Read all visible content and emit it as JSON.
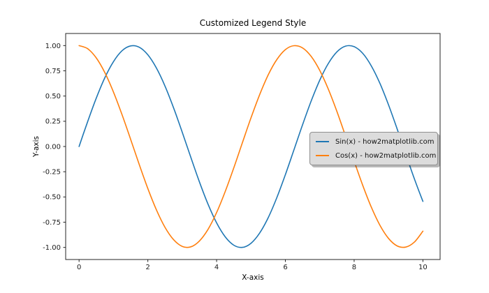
{
  "figure": {
    "title": "Customized Legend Style",
    "xlabel": "X-axis",
    "ylabel": "Y-axis"
  },
  "legend": {
    "facecolor": "#dcdcdc",
    "edgecolor": "#8f8f8f",
    "shadow": true,
    "entries": [
      {
        "label": "Sin(x) - how2matplotlib.com",
        "color": "#1f77b4"
      },
      {
        "label": "Cos(x) - how2matplotlib.com",
        "color": "#ff7f0e"
      }
    ]
  },
  "chart_data": {
    "type": "line",
    "title": "Customized Legend Style",
    "xlabel": "X-axis",
    "ylabel": "Y-axis",
    "grid": false,
    "legend_position": "center-right",
    "xlim": [
      -0.39,
      10.5
    ],
    "ylim": [
      -1.12,
      1.12
    ],
    "xticks": [
      0,
      2,
      4,
      6,
      8,
      10
    ],
    "xtick_labels": [
      "0",
      "2",
      "4",
      "6",
      "8",
      "10"
    ],
    "yticks": [
      1.0,
      0.75,
      0.5,
      0.25,
      0.0,
      -0.25,
      -0.5,
      -0.75,
      -1.0
    ],
    "ytick_labels": [
      "1.00",
      "0.75",
      "0.50",
      "0.25",
      "0.00",
      "-0.25",
      "-0.50",
      "-0.75",
      "-1.00"
    ],
    "x": [
      0,
      0.25,
      0.5,
      0.75,
      1,
      1.25,
      1.5,
      1.75,
      2,
      2.25,
      2.5,
      2.75,
      3,
      3.25,
      3.5,
      3.75,
      4,
      4.25,
      4.5,
      4.75,
      5,
      5.25,
      5.5,
      5.75,
      6,
      6.25,
      6.5,
      6.75,
      7,
      7.25,
      7.5,
      7.75,
      8,
      8.25,
      8.5,
      8.75,
      9,
      9.25,
      9.5,
      9.75,
      10
    ],
    "series": [
      {
        "name": "Sin(x) - how2matplotlib.com",
        "color": "#1f77b4",
        "values": [
          0,
          0.247,
          0.479,
          0.682,
          0.841,
          0.949,
          0.997,
          0.984,
          0.909,
          0.778,
          0.599,
          0.382,
          0.141,
          -0.108,
          -0.351,
          -0.572,
          -0.757,
          -0.895,
          -0.978,
          -1.0,
          -0.959,
          -0.859,
          -0.706,
          -0.508,
          -0.279,
          -0.033,
          0.215,
          0.45,
          0.657,
          0.823,
          0.938,
          0.995,
          0.989,
          0.923,
          0.798,
          0.625,
          0.412,
          0.174,
          -0.075,
          -0.319,
          -0.544
        ]
      },
      {
        "name": "Cos(x) - how2matplotlib.com",
        "color": "#ff7f0e",
        "values": [
          1.0,
          0.969,
          0.878,
          0.732,
          0.54,
          0.315,
          0.071,
          -0.178,
          -0.416,
          -0.628,
          -0.801,
          -0.924,
          -0.99,
          -0.994,
          -0.936,
          -0.821,
          -0.654,
          -0.446,
          -0.211,
          0.038,
          0.284,
          0.512,
          0.709,
          0.861,
          0.96,
          0.999,
          0.977,
          0.893,
          0.754,
          0.568,
          0.347,
          0.104,
          -0.146,
          -0.386,
          -0.602,
          -0.781,
          -0.911,
          -0.985,
          -0.997,
          -0.948,
          -0.839
        ]
      }
    ]
  }
}
